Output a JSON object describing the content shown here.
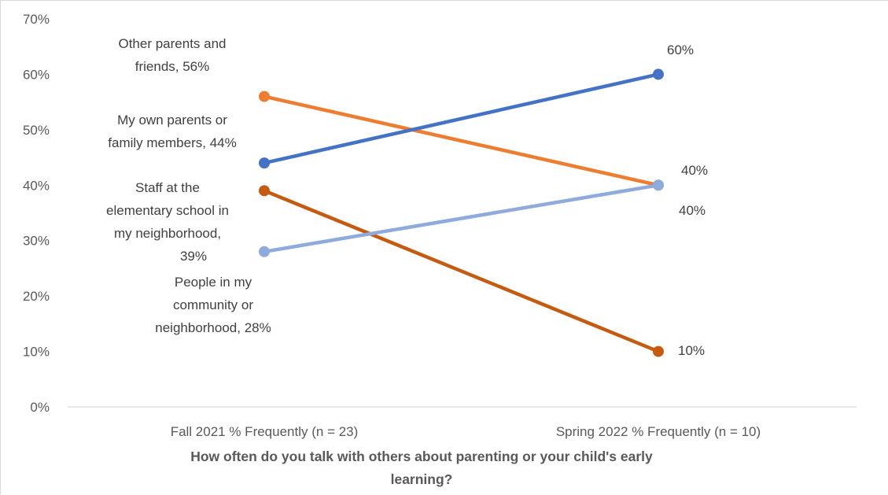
{
  "chart_data": {
    "type": "line",
    "title": "",
    "xlabel": "How often do you talk with others about parenting or your child's early learning?",
    "ylabel": "",
    "categories": [
      "Fall 2021 % Frequently (n = 23)",
      "Spring 2022 % Frequently (n = 10)"
    ],
    "y_ticks": [
      "0%",
      "10%",
      "20%",
      "30%",
      "40%",
      "50%",
      "60%",
      "70%"
    ],
    "ylim": [
      0,
      70
    ],
    "grid": false,
    "legend": "none",
    "series": [
      {
        "name": "Other parents and friends",
        "values": [
          56,
          40
        ],
        "color": "#ed7d31",
        "labels": [
          "Other parents and friends, 56%",
          "40%"
        ]
      },
      {
        "name": "My own parents or family members",
        "values": [
          44,
          60
        ],
        "color": "#4472c4",
        "labels": [
          "My own parents or family members, 44%",
          "60%"
        ]
      },
      {
        "name": "Staff at the elementary school in my neighborhood",
        "values": [
          39,
          10
        ],
        "color": "#c55a11",
        "labels": [
          "Staff at the elementary school in my neighborhood, 39%",
          "10%"
        ]
      },
      {
        "name": "People in my community or neighborhood",
        "values": [
          28,
          40
        ],
        "color": "#8faadc",
        "labels": [
          "People in my community or neighborhood, 28%",
          "40%"
        ]
      }
    ]
  }
}
